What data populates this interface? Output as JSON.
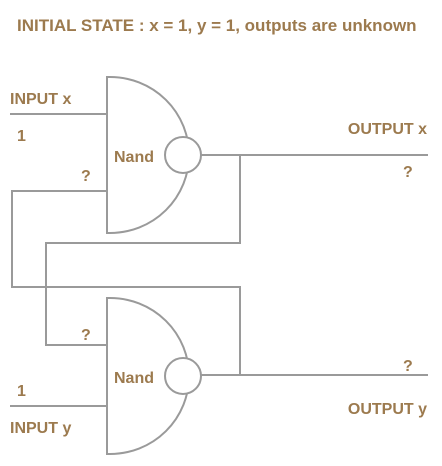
{
  "title": "INITIAL STATE : x = 1, y = 1, outputs are unknown",
  "colors": {
    "text": "#9c7a4e",
    "wire": "#9a9a9a",
    "gate_fill": "#ffffff",
    "background": "#ffffff"
  },
  "gates": {
    "top": {
      "label": "Nand"
    },
    "bottom": {
      "label": "Nand"
    }
  },
  "inputs": {
    "x": {
      "label": "INPUT x",
      "value": "1"
    },
    "y": {
      "label": "INPUT y",
      "value": "1"
    }
  },
  "feedback": {
    "top_gate_second_input": "?",
    "bottom_gate_first_input": "?"
  },
  "outputs": {
    "x": {
      "label": "OUTPUT x",
      "value": "?"
    },
    "y": {
      "label": "OUTPUT y",
      "value": "?"
    }
  }
}
